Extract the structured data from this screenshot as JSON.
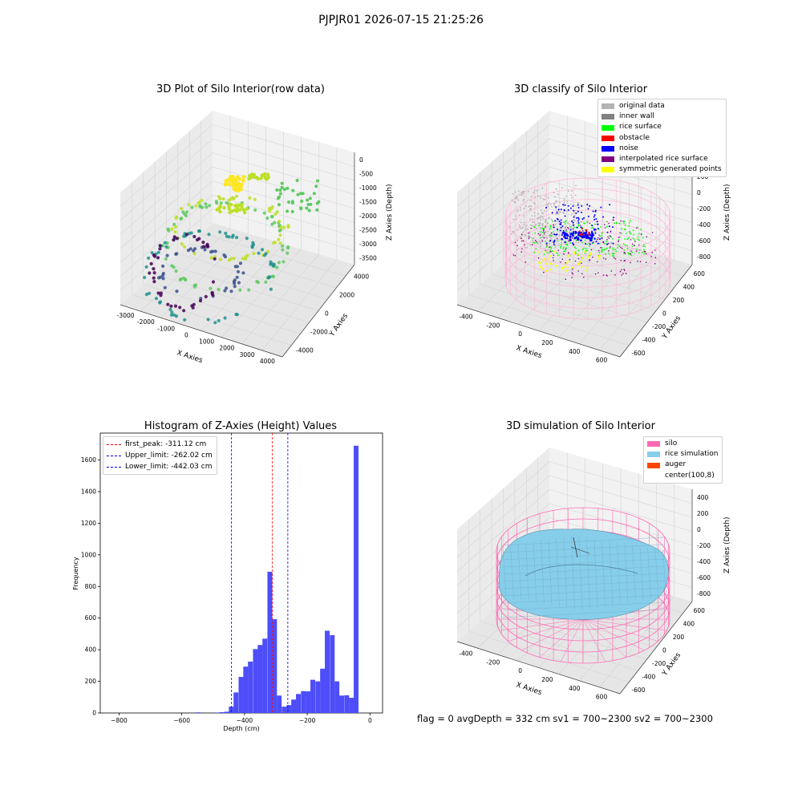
{
  "suptitle": "PJPJR01 2026-07-15 21:25:26",
  "footer": "flag = 0     avgDepth = 332 cm  sv1 = 700~2300  sv2 = 700~2300",
  "chart_data": [
    {
      "type": "scatter3d",
      "title": "3D Plot of Silo Interior(row data)",
      "xlabel": "X Axies",
      "ylabel": "Y Axies",
      "zlabel": "Z Axies (Depth)",
      "xticks": [
        "-3000",
        "-2000",
        "-1000",
        "0",
        "1000",
        "2000",
        "3000",
        "4000"
      ],
      "yticks": [
        "-4000",
        "-2000",
        "0",
        "2000",
        "4000"
      ],
      "zticks": [
        "0",
        "-500",
        "-1000",
        "-1500",
        "-2000",
        "-2500",
        "-3000",
        "-3500"
      ],
      "colormap": [
        "#440154",
        "#3b528b",
        "#21918c",
        "#5ec962",
        "#bddf26",
        "#fde725"
      ]
    },
    {
      "type": "scatter3d",
      "title": "3D classify of Silo Interior",
      "xlabel": "X Axies",
      "ylabel": "Y Axies",
      "zlabel": "Z Axies (Depth)",
      "xticks": [
        "-400",
        "-200",
        "0",
        "200",
        "400",
        "600"
      ],
      "yticks": [
        "-600",
        "-400",
        "-200",
        "0",
        "200",
        "400",
        "600"
      ],
      "zticks": [
        "400",
        "200",
        "0",
        "-200",
        "-400",
        "-600",
        "-800"
      ],
      "legend": [
        {
          "label": "original data",
          "color": "#b3b3b3"
        },
        {
          "label": "inner wall",
          "color": "#808080"
        },
        {
          "label": "rice surface",
          "color": "#00ff00"
        },
        {
          "label": "obstacle",
          "color": "#ff0000"
        },
        {
          "label": "noise",
          "color": "#0000ff"
        },
        {
          "label": "interpolated rice surface",
          "color": "#800080"
        },
        {
          "label": "symmetric generated points",
          "color": "#ffff00"
        }
      ],
      "cylinder_color": "#ffb6d9"
    },
    {
      "type": "bar",
      "title": "Histogram of Z-Axies (Height) Values",
      "xlabel": "Depth (cm)",
      "ylabel": "Frequency",
      "xlim": [
        -860,
        40
      ],
      "ylim": [
        0,
        1770
      ],
      "xticks": [
        -800,
        -600,
        -400,
        -200,
        0
      ],
      "yticks": [
        0,
        200,
        400,
        600,
        800,
        1000,
        1200,
        1400,
        1600
      ],
      "bar_color": "#4d4dfa",
      "bin_width": 15.3,
      "bins": [
        {
          "x": -870,
          "v": 1
        },
        {
          "x": -555,
          "v": 4
        },
        {
          "x": -495,
          "v": 3
        },
        {
          "x": -480,
          "v": 5
        },
        {
          "x": -465,
          "v": 8
        },
        {
          "x": -450,
          "v": 40
        },
        {
          "x": -435,
          "v": 130
        },
        {
          "x": -419,
          "v": 228
        },
        {
          "x": -404,
          "v": 293
        },
        {
          "x": -389,
          "v": 325
        },
        {
          "x": -373,
          "v": 404
        },
        {
          "x": -358,
          "v": 430
        },
        {
          "x": -343,
          "v": 470
        },
        {
          "x": -327,
          "v": 893
        },
        {
          "x": -312,
          "v": 593
        },
        {
          "x": -297,
          "v": 110
        },
        {
          "x": -281,
          "v": 40
        },
        {
          "x": -266,
          "v": 50
        },
        {
          "x": -251,
          "v": 85
        },
        {
          "x": -236,
          "v": 120
        },
        {
          "x": -220,
          "v": 138
        },
        {
          "x": -205,
          "v": 137
        },
        {
          "x": -190,
          "v": 210
        },
        {
          "x": -174,
          "v": 200
        },
        {
          "x": -159,
          "v": 280
        },
        {
          "x": -144,
          "v": 520
        },
        {
          "x": -128,
          "v": 492
        },
        {
          "x": -113,
          "v": 200
        },
        {
          "x": -98,
          "v": 110
        },
        {
          "x": -82,
          "v": 112
        },
        {
          "x": -67,
          "v": 96
        },
        {
          "x": -52,
          "v": 1690
        }
      ],
      "vlines": [
        {
          "label": "first_peak: -311.12 cm",
          "x": -311.12,
          "color": "#ff0000"
        },
        {
          "label": "Upper_limit: -262.02 cm",
          "x": -262.02,
          "color": "#0000ff"
        },
        {
          "label": "Lower_limit: -442.03 cm",
          "x": -442.03,
          "color": "#0000ff"
        }
      ]
    },
    {
      "type": "surface3d",
      "title": "3D simulation of Silo Interior",
      "xlabel": "X Axies",
      "ylabel": "Y Axies",
      "zlabel": "Z Axies (Depth)",
      "xticks": [
        "-400",
        "-200",
        "0",
        "200",
        "400",
        "600"
      ],
      "yticks": [
        "-600",
        "-400",
        "-200",
        "0",
        "200",
        "400",
        "600"
      ],
      "zticks": [
        "400",
        "200",
        "0",
        "-200",
        "-400",
        "-600",
        "-800"
      ],
      "legend": [
        {
          "label": "silo",
          "color": "#ff69b4"
        },
        {
          "label": "rice simulation",
          "color": "#87ceeb"
        },
        {
          "label": "auger",
          "color": "#ff4500"
        },
        {
          "label": "center(100,8)",
          "color": "#ffffff"
        }
      ],
      "silo_color": "#ff69b4",
      "surface_color": "#87ceeb"
    }
  ]
}
